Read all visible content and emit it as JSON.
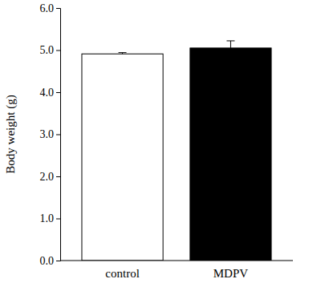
{
  "chart_data": {
    "type": "bar",
    "y_label": "Body weight (g)",
    "categories": [
      "control",
      "MDPV"
    ],
    "values": [
      4.91,
      5.05
    ],
    "errors": [
      0.03,
      0.17
    ],
    "colors": [
      "#ffffff",
      "#000000"
    ],
    "ylim": [
      0,
      6
    ],
    "yticks": [
      {
        "value": 0,
        "label": "0.0"
      },
      {
        "value": 1,
        "label": "1.0"
      },
      {
        "value": 2,
        "label": "2.0"
      },
      {
        "value": 3,
        "label": "3.0"
      },
      {
        "value": 4,
        "label": "4.0"
      },
      {
        "value": 5,
        "label": "5.0"
      },
      {
        "value": 6,
        "label": "6.0"
      }
    ],
    "grid": false
  }
}
